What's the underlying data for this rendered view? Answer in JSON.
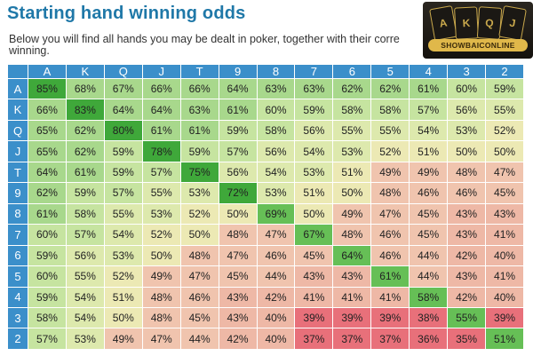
{
  "page": {
    "title": "Starting hand winning odds",
    "description": "Below you will find all hands you may be dealt in poker, together with their corre winning."
  },
  "logo": {
    "text": "SHOWBAICONLINE",
    "cards": [
      "A",
      "K",
      "Q",
      "J"
    ]
  },
  "table": {
    "columns": [
      "A",
      "K",
      "Q",
      "J",
      "T",
      "9",
      "8",
      "7",
      "6",
      "5",
      "4",
      "3",
      "2"
    ],
    "rows": [
      {
        "label": "A",
        "values": [
          "85%",
          "68%",
          "67%",
          "66%",
          "66%",
          "64%",
          "63%",
          "63%",
          "62%",
          "62%",
          "61%",
          "60%",
          "59%"
        ]
      },
      {
        "label": "K",
        "values": [
          "66%",
          "83%",
          "64%",
          "64%",
          "63%",
          "61%",
          "60%",
          "59%",
          "58%",
          "58%",
          "57%",
          "56%",
          "55%"
        ]
      },
      {
        "label": "Q",
        "values": [
          "65%",
          "62%",
          "80%",
          "61%",
          "61%",
          "59%",
          "58%",
          "56%",
          "55%",
          "55%",
          "54%",
          "53%",
          "52%"
        ]
      },
      {
        "label": "J",
        "values": [
          "65%",
          "62%",
          "59%",
          "78%",
          "59%",
          "57%",
          "56%",
          "54%",
          "53%",
          "52%",
          "51%",
          "50%",
          "50%"
        ]
      },
      {
        "label": "T",
        "values": [
          "64%",
          "61%",
          "59%",
          "57%",
          "75%",
          "56%",
          "54%",
          "53%",
          "51%",
          "49%",
          "49%",
          "48%",
          "47%"
        ]
      },
      {
        "label": "9",
        "values": [
          "62%",
          "59%",
          "57%",
          "55%",
          "53%",
          "72%",
          "53%",
          "51%",
          "50%",
          "48%",
          "46%",
          "46%",
          "45%"
        ]
      },
      {
        "label": "8",
        "values": [
          "61%",
          "58%",
          "55%",
          "53%",
          "52%",
          "50%",
          "69%",
          "50%",
          "49%",
          "47%",
          "45%",
          "43%",
          "43%"
        ]
      },
      {
        "label": "7",
        "values": [
          "60%",
          "57%",
          "54%",
          "52%",
          "50%",
          "48%",
          "47%",
          "67%",
          "48%",
          "46%",
          "45%",
          "43%",
          "41%"
        ]
      },
      {
        "label": "6",
        "values": [
          "59%",
          "56%",
          "53%",
          "50%",
          "48%",
          "47%",
          "46%",
          "45%",
          "64%",
          "46%",
          "44%",
          "42%",
          "40%"
        ]
      },
      {
        "label": "5",
        "values": [
          "60%",
          "55%",
          "52%",
          "49%",
          "47%",
          "45%",
          "44%",
          "43%",
          "43%",
          "61%",
          "44%",
          "43%",
          "41%"
        ]
      },
      {
        "label": "4",
        "values": [
          "59%",
          "54%",
          "51%",
          "48%",
          "46%",
          "43%",
          "42%",
          "41%",
          "41%",
          "41%",
          "58%",
          "42%",
          "40%"
        ]
      },
      {
        "label": "3",
        "values": [
          "58%",
          "54%",
          "50%",
          "48%",
          "45%",
          "43%",
          "40%",
          "39%",
          "39%",
          "39%",
          "38%",
          "55%",
          "39%"
        ]
      },
      {
        "label": "2",
        "values": [
          "57%",
          "53%",
          "49%",
          "47%",
          "44%",
          "42%",
          "40%",
          "37%",
          "37%",
          "37%",
          "36%",
          "35%",
          "51%"
        ]
      }
    ]
  },
  "colors": {
    "header_blue": "#3b8fca",
    "title_blue": "#1f78a8",
    "pair_green": "#3fa83a",
    "strong_green": "#c6e4a0",
    "neutral_yellow": "#ece9b4",
    "weak_salmon": "#f0c4ae",
    "worst_red": "#e8707a"
  }
}
